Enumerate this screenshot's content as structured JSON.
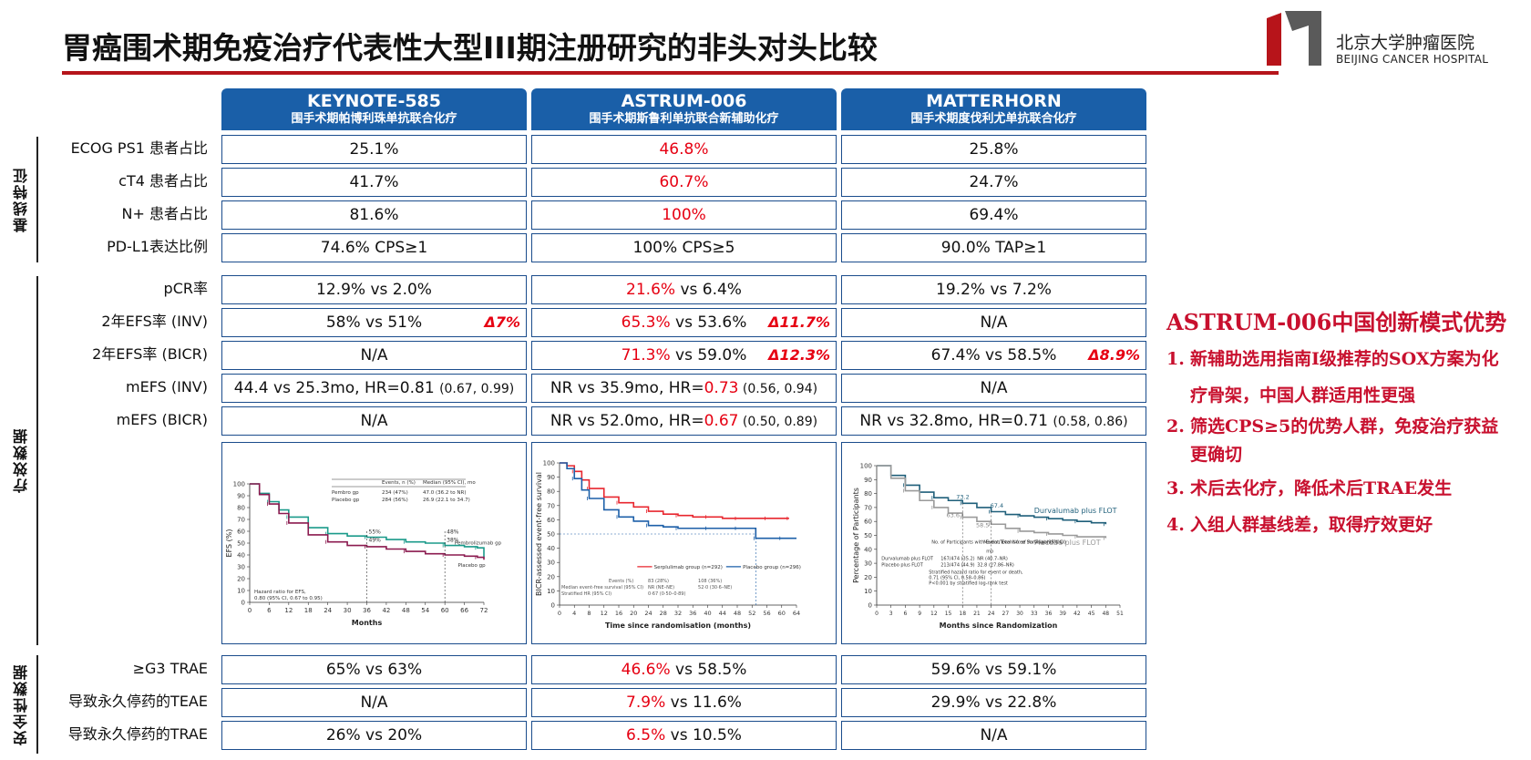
{
  "title": "胃癌围术期免疫治疗代表性大型III期注册研究的非头对头比较",
  "logo": {
    "cn": "北京大学肿瘤医院",
    "en": "BEIJING CANCER HOSPITAL"
  },
  "columns": [
    {
      "name": "KEYNOTE-585",
      "sub": "围手术期帕博利珠单抗联合化疗"
    },
    {
      "name": "ASTRUM-006",
      "sub": "围手术期斯鲁利单抗联合新辅助化疗"
    },
    {
      "name": "MATTERHORN",
      "sub": "围手术期度伐利尤单抗联合化疗"
    }
  ],
  "sections": {
    "baseline": "基线特征",
    "efficacy": "疗效数据",
    "safety": "安全性数据"
  },
  "rows": {
    "ecog": {
      "label": "ECOG PS1 患者占比",
      "c1": "25.1%",
      "c2": "46.8%",
      "c3": "25.8%"
    },
    "ct4": {
      "label": "cT4 患者占比",
      "c1": "41.7%",
      "c2": "60.7%",
      "c3": "24.7%"
    },
    "nplus": {
      "label": "N+ 患者占比",
      "c1": "81.6%",
      "c2": "100%",
      "c3": "69.4%"
    },
    "pdl1": {
      "label": "PD-L1表达比例",
      "c1": "74.6% CPS≥1",
      "c2": "100% CPS≥5",
      "c3": "90.0% TAP≥1"
    },
    "pcr": {
      "label": "pCR率",
      "c1": "12.9% vs 2.0%",
      "c2a": "21.6%",
      "c2b": " vs 6.4%",
      "c3": "19.2% vs 7.2%"
    },
    "efs_inv": {
      "label": "2年EFS率 (INV)",
      "c1": "58% vs 51%",
      "c1d": "Δ7%",
      "c2a": "65.3%",
      "c2b": " vs 53.6%",
      "c2d": "Δ11.7%",
      "c3": "N/A"
    },
    "efs_bicr": {
      "label": "2年EFS率 (BICR)",
      "c1": "N/A",
      "c2a": "71.3%",
      "c2b": " vs 59.0%",
      "c2d": "Δ12.3%",
      "c3": "67.4% vs 58.5%",
      "c3d": "Δ8.9%"
    },
    "mefs_inv": {
      "label": "mEFS (INV)",
      "c1a": "44.4 vs 25.3mo, HR=0.81 ",
      "c1b": "(0.67, 0.99)",
      "c2a": "NR vs 35.9mo, HR=",
      "c2b": "0.73",
      "c2c": " (0.56, 0.94)",
      "c3": "N/A"
    },
    "mefs_bicr": {
      "label": "mEFS (BICR)",
      "c1": "N/A",
      "c2a": "NR vs 52.0mo, HR=",
      "c2b": "0.67",
      "c2c": " (0.50, 0.89)",
      "c3a": "NR vs 32.8mo, HR=0.71 ",
      "c3b": "(0.58, 0.86)"
    },
    "g3": {
      "label": "≥G3 TRAE",
      "c1": "65% vs 63%",
      "c2a": "46.6%",
      "c2b": " vs 58.5%",
      "c3": "59.6% vs 59.1%"
    },
    "teae": {
      "label": "导致永久停药的TEAE",
      "c1": "N/A",
      "c2a": "7.9%",
      "c2b": " vs 11.6%",
      "c3": "29.9% vs 22.8%"
    },
    "trae": {
      "label": "导致永久停药的TRAE",
      "c1": "26% vs 20%",
      "c2a": "6.5%",
      "c2b": " vs 10.5%",
      "c3": "N/A"
    }
  },
  "advantages": {
    "title": "ASTRUM-006中国创新模式优势",
    "items": [
      {
        "num": "1.",
        "lines": [
          "新辅助选用指南I级推荐的SOX方案为化",
          "疗骨架，中国人群适用性更强"
        ]
      },
      {
        "num": "2.",
        "lines": [
          "筛选CPS≥5的优势人群，免疫治疗获益",
          "更确切"
        ]
      },
      {
        "num": "3.",
        "lines": [
          "术后去化疗，降低术后TRAE发生"
        ]
      },
      {
        "num": "4.",
        "lines": [
          "入组人群基线差，取得疗效更好"
        ]
      }
    ]
  },
  "chart_data": [
    {
      "type": "line",
      "title": "",
      "xlabel": "Months",
      "ylabel": "EFS (%)",
      "xlim": [
        0,
        72
      ],
      "ylim": [
        0,
        100
      ],
      "xticks": [
        0,
        6,
        12,
        18,
        24,
        30,
        36,
        42,
        48,
        54,
        60,
        66,
        72
      ],
      "yticks": [
        0,
        10,
        20,
        30,
        40,
        50,
        60,
        70,
        80,
        90,
        100
      ],
      "series": [
        {
          "name": "Pembrolizumab gp",
          "color": "#1a9a8a",
          "x": [
            0,
            3,
            6,
            9,
            12,
            18,
            24,
            30,
            36,
            42,
            48,
            54,
            60,
            66,
            70,
            72
          ],
          "y": [
            100,
            92,
            85,
            78,
            72,
            63,
            58,
            56,
            55,
            53,
            51,
            50,
            48,
            47,
            46,
            38
          ]
        },
        {
          "name": "Placebo gp",
          "color": "#8b1a4f",
          "x": [
            0,
            3,
            6,
            9,
            12,
            18,
            24,
            30,
            36,
            42,
            48,
            54,
            60,
            66,
            70,
            72
          ],
          "y": [
            100,
            91,
            83,
            75,
            67,
            57,
            51,
            48,
            47,
            45,
            43,
            41,
            40,
            39,
            38,
            36
          ]
        }
      ],
      "annotations": [
        "55%",
        "49%",
        "48%",
        "38%",
        "Hazard ratio for EFS,",
        "0.80 (95% CI, 0.67 to 0.95)"
      ],
      "table": {
        "headers": [
          "Events, n (%)",
          "Median (95% CI), mo"
        ],
        "rows": [
          [
            "Pembro gp",
            "234 (47%)",
            "47.0 (36.2 to NR)"
          ],
          [
            "Placebo gp",
            "284 (56%)",
            "26.9 (22.1 to 34.7)"
          ]
        ]
      }
    },
    {
      "type": "line",
      "title": "",
      "xlabel": "Time since randomisation (months)",
      "ylabel": "BICR-assessed event-free survival",
      "xlim": [
        0,
        64
      ],
      "ylim": [
        0,
        100
      ],
      "xticks": [
        0,
        4,
        8,
        12,
        16,
        20,
        24,
        28,
        32,
        36,
        40,
        44,
        48,
        52,
        56,
        60,
        64
      ],
      "yticks": [
        0,
        10,
        20,
        30,
        40,
        50,
        60,
        70,
        80,
        90,
        100
      ],
      "series": [
        {
          "name": "Serplulimab group (n=292)",
          "color": "#e8262e",
          "x": [
            0,
            2,
            4,
            6,
            8,
            12,
            16,
            20,
            24,
            28,
            32,
            36,
            40,
            44,
            48,
            52,
            56,
            60,
            62
          ],
          "y": [
            100,
            98,
            94,
            88,
            82,
            76,
            72,
            69,
            66,
            64,
            63,
            62,
            62,
            61,
            61,
            61,
            61,
            61,
            61
          ]
        },
        {
          "name": "Placebo group (n=296)",
          "color": "#1c5fa8",
          "x": [
            0,
            2,
            4,
            6,
            8,
            12,
            16,
            20,
            24,
            28,
            32,
            36,
            40,
            44,
            48,
            52,
            53,
            56,
            60,
            64
          ],
          "y": [
            100,
            96,
            89,
            81,
            75,
            67,
            62,
            59,
            56,
            55,
            54,
            54,
            54,
            54,
            54,
            54,
            47,
            47,
            47,
            47
          ]
        }
      ],
      "table": {
        "headers": [
          "Events (%)",
          "Median event-free survival (95% CI)",
          "Stratified HR (95% CI)"
        ],
        "rows": [
          [
            "83 (28%)",
            "NR (NE–NE)",
            "0·67 (0·50–0·89)"
          ],
          [
            "108 (36%)",
            "52·0 (30·6–NE)",
            ""
          ]
        ]
      }
    },
    {
      "type": "line",
      "title": "",
      "xlabel": "Months since Randomization",
      "ylabel": "Percentage of Participants",
      "xlim": [
        0,
        51
      ],
      "ylim": [
        0,
        100
      ],
      "xticks": [
        0,
        3,
        6,
        9,
        12,
        15,
        18,
        21,
        24,
        27,
        30,
        33,
        36,
        39,
        42,
        45,
        48,
        51
      ],
      "yticks": [
        0,
        10,
        20,
        30,
        40,
        50,
        60,
        70,
        80,
        90,
        100
      ],
      "series": [
        {
          "name": "Durvalumab plus FLOT",
          "color": "#1f5f7a",
          "x": [
            0,
            3,
            6,
            9,
            12,
            15,
            18,
            21,
            24,
            27,
            30,
            33,
            36,
            39,
            42,
            45,
            48
          ],
          "y": [
            100,
            93,
            86,
            81,
            77,
            75,
            73,
            70,
            67,
            65,
            64,
            63,
            62,
            61,
            60,
            59,
            58
          ]
        },
        {
          "name": "Placebo plus FLOT",
          "color": "#9a9a9a",
          "x": [
            0,
            3,
            6,
            9,
            12,
            15,
            18,
            21,
            24,
            27,
            30,
            33,
            36,
            39,
            42,
            45,
            48
          ],
          "y": [
            100,
            91,
            82,
            75,
            70,
            66,
            63,
            60,
            58,
            55,
            53,
            52,
            51,
            50,
            49,
            49,
            48
          ]
        }
      ],
      "annotations": [
        "73.2",
        "67.4",
        "63.6",
        "58.5"
      ],
      "table": {
        "headers": [
          "No. of Participants with Event/Total No. of Participants (%)",
          "Median Event-free Survival (95% CI)"
        ],
        "rows": [
          [
            "Durvalumab plus FLOT",
            "167/474 (35.2)",
            "NR (40.7–NR)"
          ],
          [
            "Placebo plus FLOT",
            "213/474 (44.9)",
            "32.8 (27.86–NR)"
          ]
        ],
        "note": [
          "Stratified hazard ratio for event or death,",
          "0.71 (95% CI, 0.58–0.86)",
          "P<0.001 by stratified log-rank test"
        ],
        "unit": "mo"
      }
    }
  ]
}
